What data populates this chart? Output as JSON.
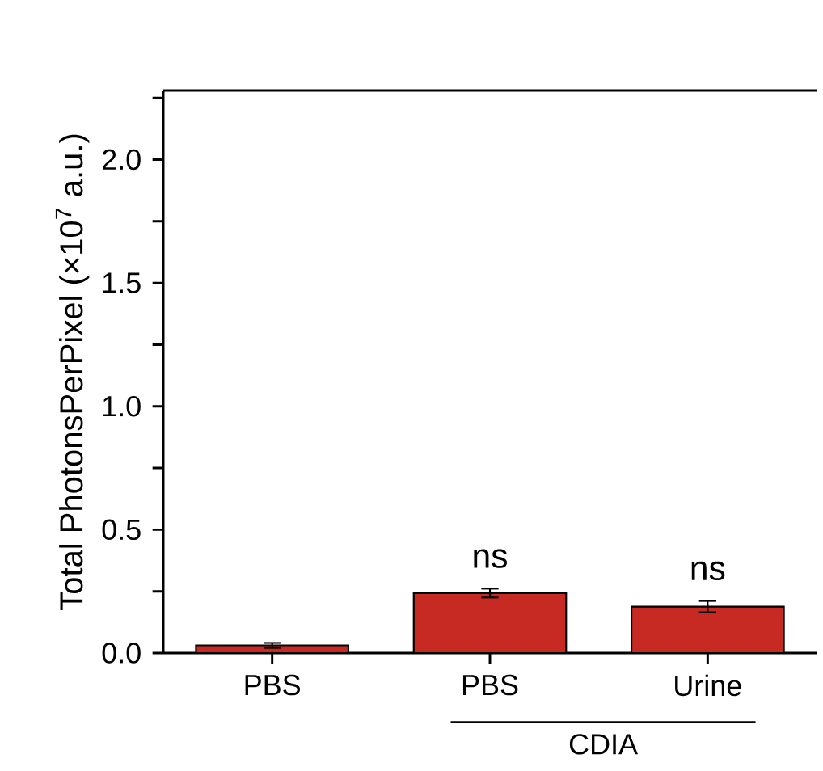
{
  "chart_data": {
    "type": "bar",
    "ylabel": "Total PhotonsPerPixel (×10$^{7}$ a.u.)",
    "categories": [
      "PBS",
      "PBS",
      "Urine"
    ],
    "values": [
      0.031,
      0.243,
      0.188
    ],
    "errors": [
      0.01,
      0.018,
      0.023
    ],
    "value_labels": [
      null,
      "ns",
      "ns"
    ],
    "color": "#c62a22",
    "ylim": [
      0,
      2.28
    ],
    "yticks": [
      {
        "value": 0,
        "label": "0.0"
      },
      {
        "value": 0.25,
        "label": null
      },
      {
        "value": 0.5,
        "label": "0.5"
      },
      {
        "value": 0.75,
        "label": null
      },
      {
        "value": 1,
        "label": "1.0"
      },
      {
        "value": 1.25,
        "label": null
      },
      {
        "value": 1.5,
        "label": "1.5"
      },
      {
        "value": 1.75,
        "label": null
      },
      {
        "value": 2,
        "label": "2.0"
      },
      {
        "value": 2.25,
        "label": null
      }
    ],
    "annotations": [
      "CDIA"
    ]
  }
}
